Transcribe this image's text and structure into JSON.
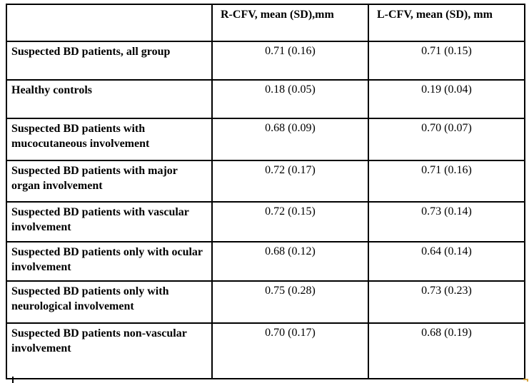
{
  "table": {
    "columns": [
      "",
      "R-CFV, mean (SD),mm",
      "L-CFV, mean (SD), mm"
    ],
    "rows": [
      {
        "label": "Suspected BD patients, all group",
        "r_cfv": "0.71 (0.16)",
        "l_cfv": "0.71 (0.15)"
      },
      {
        "label": "Healthy controls",
        "r_cfv": "0.18 (0.05)",
        "l_cfv": "0.19 (0.04)"
      },
      {
        "label": "Suspected BD patients with mucocutaneous involvement",
        "r_cfv": "0.68 (0.09)",
        "l_cfv": "0.70 (0.07)"
      },
      {
        "label": "Suspected BD patients with major organ involvement",
        "r_cfv": "0.72 (0.17)",
        "l_cfv": "0.71 (0.16)"
      },
      {
        "label": "Suspected BD patients with vascular involvement",
        "r_cfv": "0.72 (0.15)",
        "l_cfv": "0.73 (0.14)"
      },
      {
        "label": "Suspected BD patients only with ocular involvement",
        "r_cfv": "0.68 (0.12)",
        "l_cfv": "0.64 (0.14)"
      },
      {
        "label": "Suspected BD patients only with neurological involvement",
        "r_cfv": "0.75 (0.28)",
        "l_cfv": "0.73 (0.23)"
      },
      {
        "label": "Suspected BD patients non-vascular involvement",
        "r_cfv": "0.70 (0.17)",
        "l_cfv": "0.68 (0.19)"
      }
    ]
  },
  "colors": {
    "border": "#000000",
    "accent_mark": "#d4a23d"
  }
}
